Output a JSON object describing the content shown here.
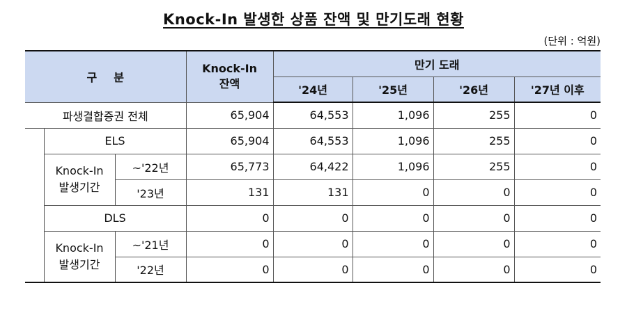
{
  "title": "Knock-In 발생한 상품 잔액 및 만기도래 현황",
  "unit": "(단위 : 억원)",
  "headers": {
    "category": "구분",
    "balance_line1": "Knock-In",
    "balance_line2": "잔액",
    "maturity": "만기 도래",
    "years": [
      "'24년",
      "'25년",
      "'26년",
      "'27년 이후"
    ]
  },
  "rows": {
    "total": {
      "label": "파생결합증권 전체",
      "values": [
        "65,904",
        "64,553",
        "1,096",
        "255",
        "0"
      ]
    },
    "els": {
      "label": "ELS",
      "values": [
        "65,904",
        "64,553",
        "1,096",
        "255",
        "0"
      ]
    },
    "els_group": {
      "line1": "Knock-In",
      "line2": "발생기간"
    },
    "els_22": {
      "label": "~'22년",
      "values": [
        "65,773",
        "64,422",
        "1,096",
        "255",
        "0"
      ]
    },
    "els_23": {
      "label": "'23년",
      "values": [
        "131",
        "131",
        "0",
        "0",
        "0"
      ]
    },
    "dls": {
      "label": "DLS",
      "values": [
        "0",
        "0",
        "0",
        "0",
        "0"
      ]
    },
    "dls_group": {
      "line1": "Knock-In",
      "line2": "발생기간"
    },
    "dls_21": {
      "label": "~'21년",
      "values": [
        "0",
        "0",
        "0",
        "0",
        "0"
      ]
    },
    "dls_22": {
      "label": "'22년",
      "values": [
        "0",
        "0",
        "0",
        "0",
        "0"
      ]
    }
  }
}
